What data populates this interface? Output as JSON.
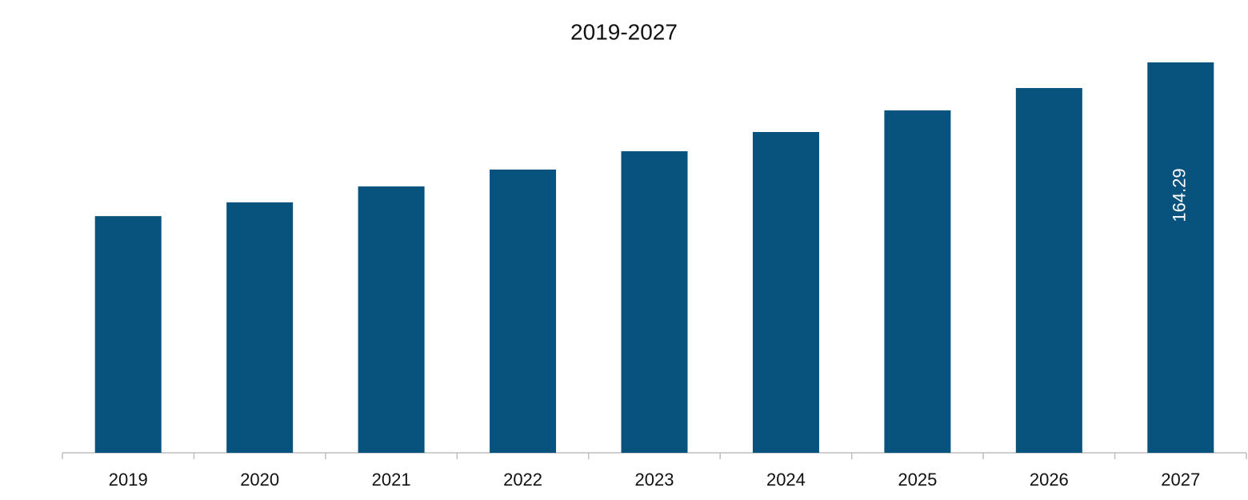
{
  "chart_data": {
    "type": "bar",
    "title": "2019-2027",
    "categories": [
      "2019",
      "2020",
      "2021",
      "2022",
      "2023",
      "2024",
      "2025",
      "2026",
      "2027"
    ],
    "values": [
      99.6,
      105.4,
      112.1,
      119.2,
      126.9,
      135.0,
      144.1,
      153.5,
      164.29
    ],
    "value_labels": [
      null,
      null,
      null,
      null,
      null,
      null,
      null,
      null,
      "164.29"
    ],
    "color": "#08527e"
  }
}
